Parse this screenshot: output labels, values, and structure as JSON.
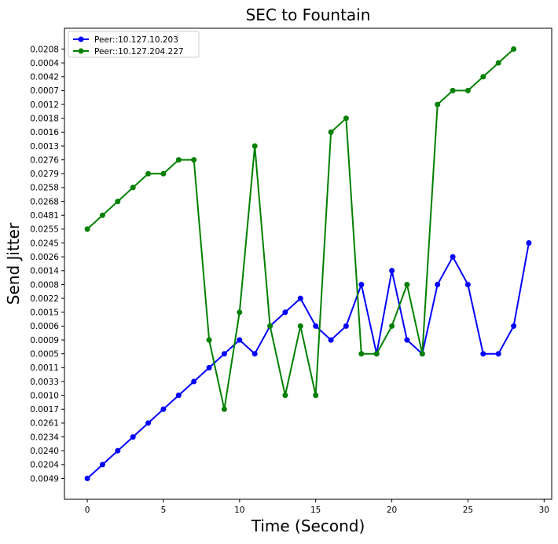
{
  "chart_data": {
    "type": "line",
    "title": "SEC to Fountain",
    "xlabel": "Time (Second)",
    "ylabel": "Send Jitter",
    "xlim": [
      -1.5,
      30.5
    ],
    "x_ticks": [
      0,
      5,
      10,
      15,
      20,
      25,
      30
    ],
    "y_categories": [
      "0.0049",
      "0.0204",
      "0.0240",
      "0.0234",
      "0.0261",
      "0.0017",
      "0.0010",
      "0.0033",
      "0.0011",
      "0.0005",
      "0.0009",
      "0.0006",
      "0.0015",
      "0.0022",
      "0.0008",
      "0.0014",
      "0.0026",
      "0.0245",
      "0.0255",
      "0.0481",
      "0.0268",
      "0.0258",
      "0.0279",
      "0.0276",
      "0.0013",
      "0.0016",
      "0.0018",
      "0.0012",
      "0.0007",
      "0.0042",
      "0.0004",
      "0.0208"
    ],
    "ylim": [
      -1.5,
      32.5
    ],
    "grid": false,
    "legend_position": "top-left",
    "series": [
      {
        "name": "Peer::10.127.10.203",
        "color": "#0000ff",
        "x": [
          0,
          1,
          2,
          3,
          4,
          5,
          6,
          7,
          8,
          9,
          10,
          11,
          12,
          13,
          14,
          15,
          16,
          17,
          18,
          19,
          20,
          21,
          22,
          23,
          24,
          25,
          26,
          27,
          28,
          29
        ],
        "y": [
          "0.0049",
          "0.0204",
          "0.0240",
          "0.0234",
          "0.0261",
          "0.0017",
          "0.0010",
          "0.0033",
          "0.0011",
          "0.0005",
          "0.0009",
          "0.0005",
          "0.0006",
          "0.0015",
          "0.0022",
          "0.0006",
          "0.0009",
          "0.0006",
          "0.0008",
          "0.0005",
          "0.0014",
          "0.0009",
          "0.0005",
          "0.0008",
          "0.0026",
          "0.0008",
          "0.0005",
          "0.0005",
          "0.0006",
          "0.0245"
        ]
      },
      {
        "name": "Peer::10.127.204.227",
        "color": "#008000",
        "x": [
          0,
          1,
          2,
          3,
          4,
          5,
          6,
          7,
          8,
          9,
          10,
          11,
          12,
          13,
          14,
          15,
          16,
          17,
          18,
          19,
          20,
          21,
          22,
          23,
          24,
          25,
          26,
          27,
          28
        ],
        "y": [
          "0.0255",
          "0.0481",
          "0.0268",
          "0.0258",
          "0.0279",
          "0.0279",
          "0.0276",
          "0.0276",
          "0.0009",
          "0.0017",
          "0.0015",
          "0.0013",
          "0.0006",
          "0.0010",
          "0.0006",
          "0.0010",
          "0.0016",
          "0.0018",
          "0.0005",
          "0.0005",
          "0.0006",
          "0.0008",
          "0.0005",
          "0.0012",
          "0.0007",
          "0.0007",
          "0.0042",
          "0.0004",
          "0.0208"
        ]
      }
    ]
  }
}
